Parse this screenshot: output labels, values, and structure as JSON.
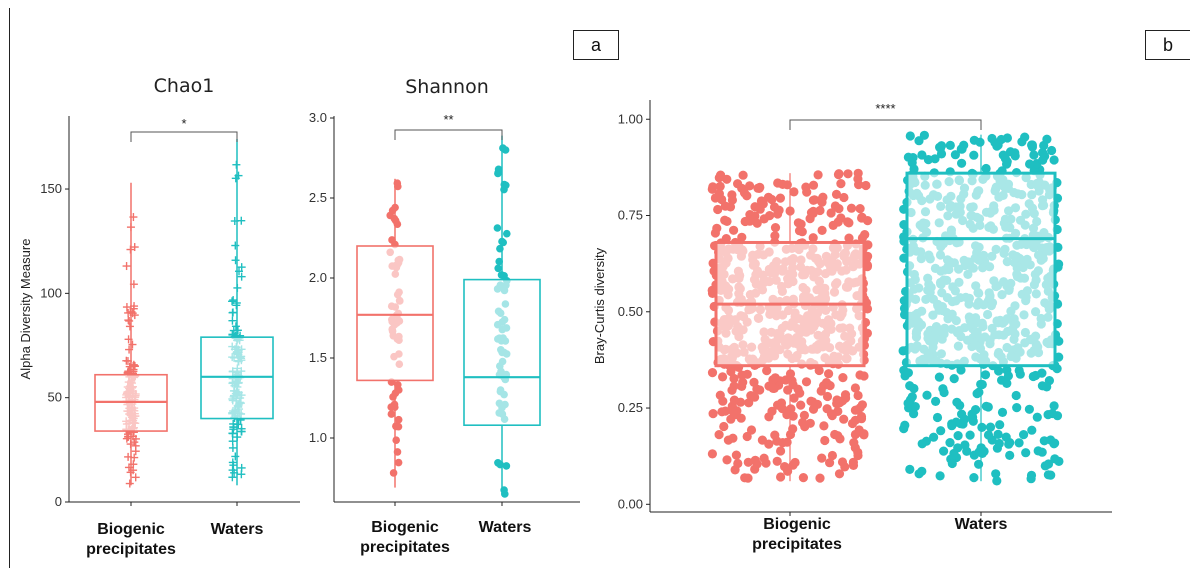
{
  "panel_labels": {
    "a": "a",
    "b": "b"
  },
  "colors": {
    "biogenic": "#F2726B",
    "waters": "#1FBFC1",
    "biogenic_light": "#FAC6C3",
    "waters_light": "#A6E3E5",
    "axis": "#222222"
  },
  "chart_data": [
    {
      "id": "chao1",
      "type": "boxplot",
      "title": "Chao1",
      "ylabel": "Alpha Diversity Measure",
      "ylim": [
        0,
        185
      ],
      "yticks": [
        0,
        50,
        100,
        150
      ],
      "categories": [
        "Biogenic\nprecipitates",
        "Waters"
      ],
      "significance": "*",
      "boxes": [
        {
          "name": "Biogenic precipitates",
          "min": 8,
          "q1": 34,
          "median": 48,
          "q3": 61,
          "max": 153
        },
        {
          "name": "Waters",
          "min": 8,
          "q1": 40,
          "median": 60,
          "q3": 79,
          "max": 174
        }
      ]
    },
    {
      "id": "shannon",
      "type": "boxplot",
      "title": "Shannon",
      "ylabel": "",
      "ylim": [
        0.6,
        3.1
      ],
      "yticks": [
        1.0,
        1.5,
        2.0,
        2.5,
        3.0
      ],
      "categories": [
        "Biogenic\nprecipitates",
        "Waters"
      ],
      "significance": "**",
      "boxes": [
        {
          "name": "Biogenic precipitates",
          "min": 0.69,
          "q1": 1.36,
          "median": 1.77,
          "q3": 2.2,
          "max": 2.62
        },
        {
          "name": "Waters",
          "min": 0.65,
          "q1": 1.08,
          "median": 1.38,
          "q3": 1.99,
          "max": 2.89
        }
      ]
    },
    {
      "id": "braycurtis",
      "type": "boxplot",
      "title": "",
      "ylabel": "Bray-Curtis diversity",
      "ylim": [
        -0.02,
        1.05
      ],
      "yticks": [
        0.0,
        0.25,
        0.5,
        0.75,
        1.0
      ],
      "ytick_labels": [
        "0.00",
        "0.25",
        "0.50",
        "0.75",
        "1.00"
      ],
      "categories": [
        "Biogenic\nprecipitates",
        "Waters"
      ],
      "significance": "****",
      "boxes": [
        {
          "name": "Biogenic precipitates",
          "min": 0.06,
          "q1": 0.36,
          "median": 0.52,
          "q3": 0.68,
          "max": 0.86
        },
        {
          "name": "Waters",
          "min": 0.06,
          "q1": 0.36,
          "median": 0.69,
          "q3": 0.86,
          "max": 0.96
        }
      ]
    }
  ]
}
